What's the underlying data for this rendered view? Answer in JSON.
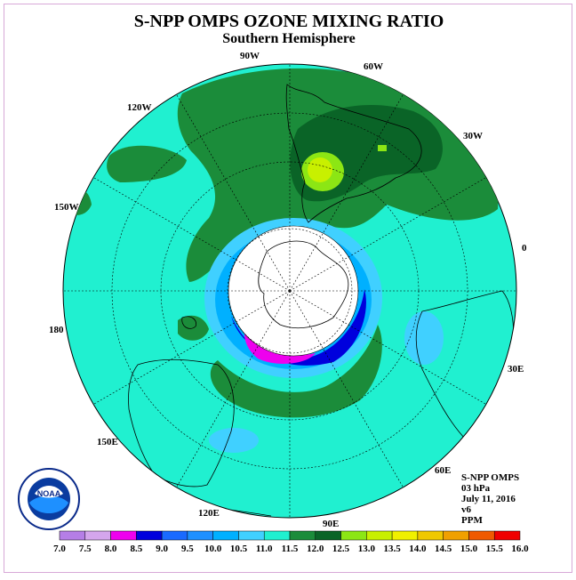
{
  "title": "S-NPP OMPS OZONE MIXING RATIO",
  "subtitle": "Southern Hemisphere",
  "longitudes": {
    "w90": "90W",
    "w60": "60W",
    "w120": "120W",
    "w30": "30W",
    "w150": "150W",
    "e0": "0",
    "e180": "180",
    "e30": "30E",
    "e150": "150E",
    "e60": "60E",
    "e120": "120E",
    "e90": "90E"
  },
  "info": {
    "instrument": "S-NPP OMPS",
    "level": "03 hPa",
    "date": "July 11, 2016",
    "version": "v6",
    "units": "PPM"
  },
  "logo": {
    "text": "NOAA"
  },
  "colorbar": {
    "labels": [
      "7.0",
      "7.5",
      "8.0",
      "8.5",
      "9.0",
      "9.5",
      "10.0",
      "10.5",
      "11.0",
      "11.5",
      "12.0",
      "12.5",
      "13.0",
      "13.5",
      "14.0",
      "14.5",
      "15.0",
      "15.5",
      "16.0"
    ],
    "colors": [
      "#b57ee6",
      "#d4a6ec",
      "#ee00ee",
      "#0000dd",
      "#1a6aff",
      "#1e90ff",
      "#00b0ff",
      "#40d0ff",
      "#20f0d0",
      "#1b8c3a",
      "#0a6427",
      "#8ce614",
      "#c8f000",
      "#f0f000",
      "#f0c800",
      "#f0a000",
      "#f05a00",
      "#f00000",
      "#8b5a3c"
    ]
  },
  "colors": {
    "background_field": "#20f0d0",
    "mid_field": "#1b8c3a",
    "high_field": "#0a6427",
    "peak_field": "#c8f000",
    "polar_night": "#ffffff"
  }
}
